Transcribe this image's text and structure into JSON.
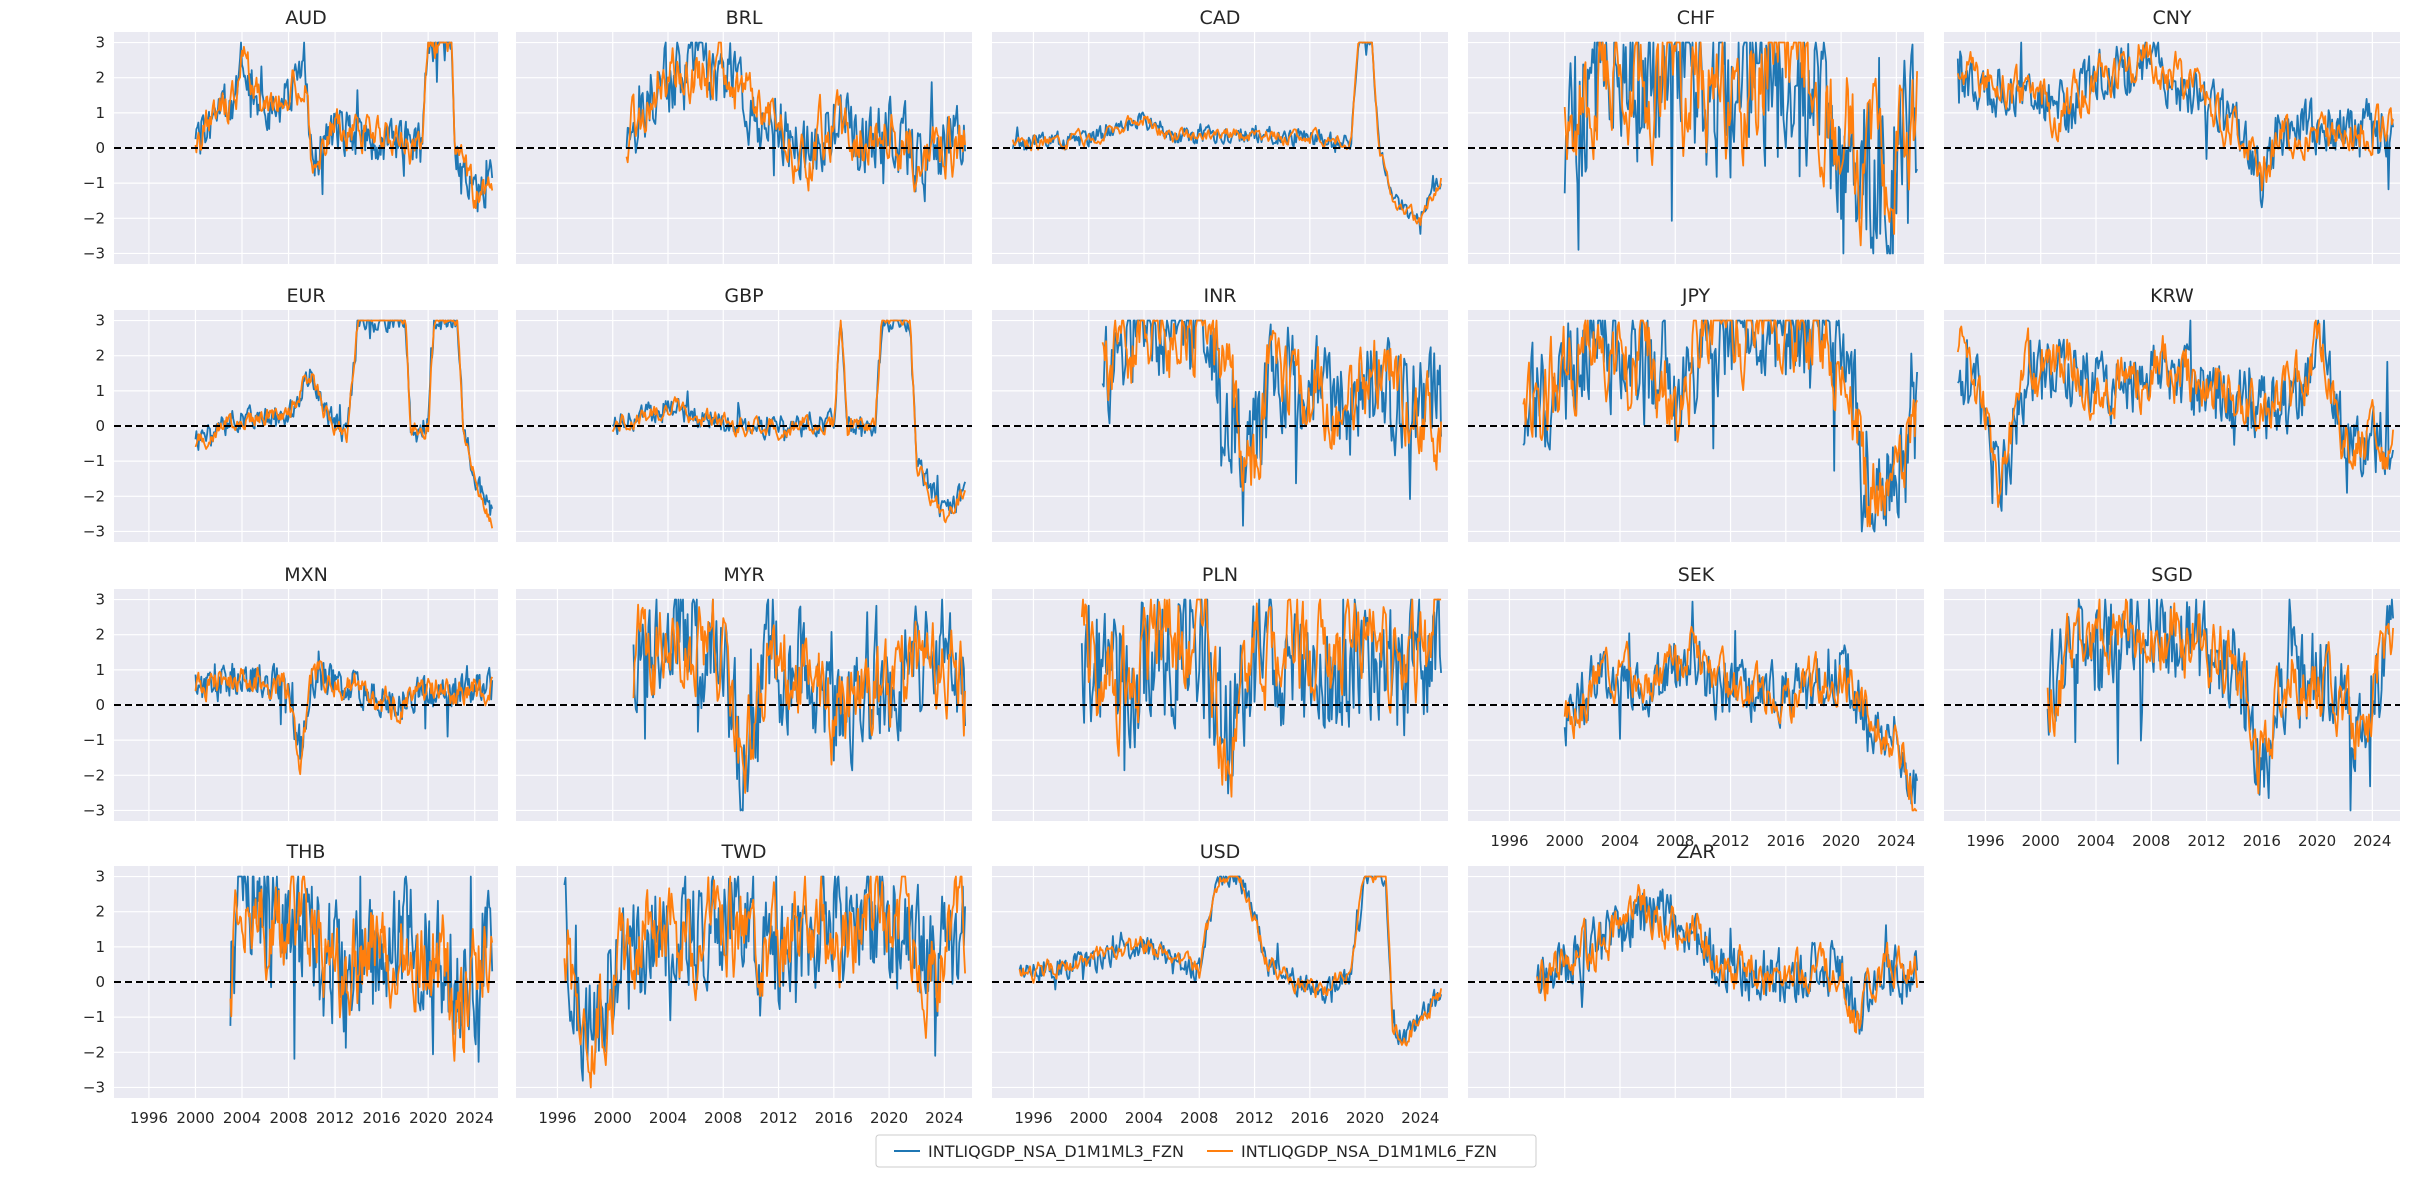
{
  "figure": {
    "legend": [
      {
        "name": "INTLIQGDP_NSA_D1M1ML3_FZN",
        "color": "#1f77b4"
      },
      {
        "name": "INTLIQGDP_NSA_D1M1ML6_FZN",
        "color": "#ff7f0e"
      }
    ],
    "colors": {
      "panel_bg": "#eaeaf2",
      "grid": "#ffffff",
      "zero_line": "#000000",
      "text": "#262626"
    }
  },
  "chart_data": {
    "type": "line",
    "layout": "small-multiples 5 columns x 4 rows",
    "xlim": [
      1993.0,
      2026.0
    ],
    "ylim": [
      -3.3,
      3.3
    ],
    "xticks": [
      1996,
      2000,
      2004,
      2008,
      2012,
      2016,
      2020,
      2024
    ],
    "xtick_labels": [
      "1996",
      "2000",
      "2004",
      "2008",
      "2012",
      "2016",
      "2020",
      "2024"
    ],
    "yticks": [
      -3,
      -2,
      -1,
      0,
      1,
      2,
      3
    ],
    "ytick_labels": [
      "−3",
      "−2",
      "−1",
      "0",
      "1",
      "2",
      "3"
    ],
    "reference_line": {
      "y": 0,
      "style": "dashed",
      "color": "#000000"
    },
    "series_names": [
      "INTLIQGDP_NSA_D1M1ML3_FZN",
      "INTLIQGDP_NSA_D1M1ML6_FZN"
    ],
    "panels": [
      {
        "title": "AUD",
        "start": 2000.0,
        "end": 2025.5,
        "profile": [
          [
            2000,
            0.2
          ],
          [
            2003.5,
            1.5
          ],
          [
            2004,
            2.5
          ],
          [
            2006,
            0.8
          ],
          [
            2009.5,
            2.0
          ],
          [
            2010,
            -0.5
          ],
          [
            2012,
            0.5
          ],
          [
            2016,
            0.2
          ],
          [
            2019.5,
            0
          ],
          [
            2020,
            3
          ],
          [
            2022,
            3
          ],
          [
            2022.3,
            0
          ],
          [
            2024,
            -1.5
          ],
          [
            2025.5,
            -0.8
          ]
        ],
        "volatility": 0.55,
        "seed": 1
      },
      {
        "title": "BRL",
        "start": 2001.0,
        "end": 2025.5,
        "profile": [
          [
            2001,
            0.2
          ],
          [
            2003,
            1.8
          ],
          [
            2005,
            2.0
          ],
          [
            2008,
            2.2
          ],
          [
            2010,
            1.2
          ],
          [
            2012,
            0.5
          ],
          [
            2014,
            -0.3
          ],
          [
            2016,
            0.8
          ],
          [
            2018,
            0.2
          ],
          [
            2020,
            0.5
          ],
          [
            2022,
            -0.2
          ],
          [
            2025.5,
            0.2
          ]
        ],
        "volatility": 0.9,
        "seed": 2
      },
      {
        "title": "CAD",
        "start": 1994.5,
        "end": 2025.5,
        "profile": [
          [
            1994.5,
            0.1
          ],
          [
            2000,
            0.3
          ],
          [
            2004,
            0.8
          ],
          [
            2006,
            0.3
          ],
          [
            2010,
            0.4
          ],
          [
            2015,
            0.3
          ],
          [
            2019,
            0.2
          ],
          [
            2019.5,
            3
          ],
          [
            2020.5,
            3
          ],
          [
            2021,
            0
          ],
          [
            2022,
            -1.5
          ],
          [
            2024,
            -2.0
          ],
          [
            2025.5,
            -0.8
          ]
        ],
        "volatility": 0.22,
        "seed": 3
      },
      {
        "title": "CHF",
        "start": 2000.0,
        "end": 2025.5,
        "profile": [
          [
            2000,
            0.5
          ],
          [
            2003,
            2.5
          ],
          [
            2006,
            1.5
          ],
          [
            2008,
            2.5
          ],
          [
            2012,
            1.0
          ],
          [
            2015,
            2.5
          ],
          [
            2018,
            1.5
          ],
          [
            2020,
            0.5
          ],
          [
            2023,
            -1.0
          ],
          [
            2025.5,
            1.0
          ]
        ],
        "volatility": 2.0,
        "seed": 4
      },
      {
        "title": "CNY",
        "start": 1994.0,
        "end": 2025.5,
        "profile": [
          [
            1994,
            2.0
          ],
          [
            1998,
            1.5
          ],
          [
            2002,
            1.0
          ],
          [
            2004,
            2.0
          ],
          [
            2008,
            2.5
          ],
          [
            2011,
            1.5
          ],
          [
            2013,
            1.0
          ],
          [
            2015,
            0.3
          ],
          [
            2016,
            -1.0
          ],
          [
            2017,
            0.3
          ],
          [
            2020,
            0.5
          ],
          [
            2025.5,
            0.5
          ]
        ],
        "volatility": 0.7,
        "seed": 5
      },
      {
        "title": "EUR",
        "start": 2000.0,
        "end": 2025.5,
        "profile": [
          [
            2000,
            -0.5
          ],
          [
            2002,
            0
          ],
          [
            2004,
            0.2
          ],
          [
            2008,
            0.3
          ],
          [
            2010,
            1.5
          ],
          [
            2011,
            0.5
          ],
          [
            2013,
            -0.3
          ],
          [
            2014,
            3
          ],
          [
            2018,
            3
          ],
          [
            2018.5,
            0
          ],
          [
            2020,
            0
          ],
          [
            2020.5,
            3
          ],
          [
            2022.5,
            3
          ],
          [
            2023,
            0
          ],
          [
            2024,
            -1.5
          ],
          [
            2025.5,
            -2.5
          ]
        ],
        "volatility": 0.28,
        "seed": 6
      },
      {
        "title": "GBP",
        "start": 2000.0,
        "end": 2025.5,
        "profile": [
          [
            2000,
            0
          ],
          [
            2004,
            0.5
          ],
          [
            2008,
            0.1
          ],
          [
            2012,
            0
          ],
          [
            2016,
            0.1
          ],
          [
            2016.5,
            3
          ],
          [
            2017,
            0
          ],
          [
            2019,
            0
          ],
          [
            2019.5,
            3
          ],
          [
            2021.5,
            3
          ],
          [
            2022,
            -1.0
          ],
          [
            2024,
            -2.5
          ],
          [
            2025.5,
            -1.8
          ]
        ],
        "volatility": 0.3,
        "seed": 7
      },
      {
        "title": "INR",
        "start": 2001.0,
        "end": 2025.5,
        "profile": [
          [
            2001,
            1.5
          ],
          [
            2004,
            2.8
          ],
          [
            2008,
            2.5
          ],
          [
            2010,
            0.8
          ],
          [
            2012,
            -1.0
          ],
          [
            2013,
            1.5
          ],
          [
            2016,
            1.0
          ],
          [
            2019,
            0.5
          ],
          [
            2021,
            1.5
          ],
          [
            2023,
            0.5
          ],
          [
            2025.5,
            0.5
          ]
        ],
        "volatility": 1.4,
        "seed": 8
      },
      {
        "title": "JPY",
        "start": 1997.0,
        "end": 2025.5,
        "profile": [
          [
            1997,
            0.2
          ],
          [
            1999,
            1.0
          ],
          [
            2002,
            2.5
          ],
          [
            2005,
            1.5
          ],
          [
            2007,
            1.5
          ],
          [
            2008,
            0.2
          ],
          [
            2010,
            2.5
          ],
          [
            2014,
            3
          ],
          [
            2019,
            2.8
          ],
          [
            2021,
            0.5
          ],
          [
            2022,
            -2.0
          ],
          [
            2024,
            -1.5
          ],
          [
            2025.5,
            0
          ]
        ],
        "volatility": 1.4,
        "seed": 9
      },
      {
        "title": "KRW",
        "start": 1994.0,
        "end": 2025.5,
        "profile": [
          [
            1994,
            2.0
          ],
          [
            1996,
            0.5
          ],
          [
            1997,
            -1.5
          ],
          [
            1999,
            1.5
          ],
          [
            2002,
            1.5
          ],
          [
            2006,
            1.0
          ],
          [
            2009,
            1.5
          ],
          [
            2012,
            1.0
          ],
          [
            2016,
            0.5
          ],
          [
            2019,
            1.0
          ],
          [
            2020,
            2.5
          ],
          [
            2022,
            -0.5
          ],
          [
            2025.5,
            -0.5
          ]
        ],
        "volatility": 0.9,
        "seed": 10
      },
      {
        "title": "MXN",
        "start": 2000.0,
        "end": 2025.5,
        "profile": [
          [
            2000,
            0.5
          ],
          [
            2004,
            0.8
          ],
          [
            2008,
            0.5
          ],
          [
            2009,
            -1.5
          ],
          [
            2010,
            0.8
          ],
          [
            2014,
            0.5
          ],
          [
            2016,
            0
          ],
          [
            2020,
            0.3
          ],
          [
            2025.5,
            0.5
          ]
        ],
        "volatility": 0.45,
        "seed": 11
      },
      {
        "title": "MYR",
        "start": 2001.5,
        "end": 2025.5,
        "profile": [
          [
            2001.5,
            1.0
          ],
          [
            2004,
            2.0
          ],
          [
            2008,
            1.5
          ],
          [
            2009.5,
            -2.0
          ],
          [
            2011,
            1.0
          ],
          [
            2014,
            1.0
          ],
          [
            2016,
            -0.5
          ],
          [
            2018,
            0.5
          ],
          [
            2020,
            0
          ],
          [
            2022,
            1.0
          ],
          [
            2025.5,
            0.5
          ]
        ],
        "volatility": 1.5,
        "seed": 12
      },
      {
        "title": "PLN",
        "start": 1999.5,
        "end": 2025.5,
        "profile": [
          [
            1999.5,
            1.5
          ],
          [
            2002,
            0.5
          ],
          [
            2005,
            1.5
          ],
          [
            2008,
            2.0
          ],
          [
            2010,
            -1.0
          ],
          [
            2012,
            1.0
          ],
          [
            2015,
            1.5
          ],
          [
            2018,
            0.5
          ],
          [
            2020,
            1.5
          ],
          [
            2023,
            1.0
          ],
          [
            2025.5,
            2.0
          ]
        ],
        "volatility": 1.7,
        "seed": 13
      },
      {
        "title": "SEK",
        "start": 2000.0,
        "end": 2025.5,
        "profile": [
          [
            2000,
            -0.5
          ],
          [
            2003,
            1.0
          ],
          [
            2006,
            0.5
          ],
          [
            2009,
            1.5
          ],
          [
            2011,
            0.5
          ],
          [
            2014,
            0.3
          ],
          [
            2017,
            0.3
          ],
          [
            2020,
            1.0
          ],
          [
            2022,
            -0.5
          ],
          [
            2024,
            -1.0
          ],
          [
            2025.5,
            -2.5
          ]
        ],
        "volatility": 0.75,
        "seed": 14
      },
      {
        "title": "SGD",
        "start": 2000.5,
        "end": 2025.5,
        "profile": [
          [
            2000.5,
            0.5
          ],
          [
            2003,
            1.5
          ],
          [
            2006,
            2.0
          ],
          [
            2009,
            2.0
          ],
          [
            2012,
            1.5
          ],
          [
            2014,
            1.0
          ],
          [
            2016,
            -1.5
          ],
          [
            2018,
            1.0
          ],
          [
            2021,
            0.5
          ],
          [
            2023,
            -1.0
          ],
          [
            2025.5,
            2.0
          ]
        ],
        "volatility": 1.2,
        "seed": 15
      },
      {
        "title": "THB",
        "start": 2003.0,
        "end": 2025.5,
        "profile": [
          [
            2003,
            0
          ],
          [
            2004,
            2.5
          ],
          [
            2007,
            1.5
          ],
          [
            2010,
            1.5
          ],
          [
            2013,
            0
          ],
          [
            2016,
            1.0
          ],
          [
            2019,
            1.0
          ],
          [
            2021,
            0.5
          ],
          [
            2023,
            -0.5
          ],
          [
            2025.5,
            1.5
          ]
        ],
        "volatility": 1.5,
        "seed": 16
      },
      {
        "title": "TWD",
        "start": 1996.5,
        "end": 2025.5,
        "profile": [
          [
            1996.5,
            1.5
          ],
          [
            1998,
            -2.0
          ],
          [
            2000,
            0.3
          ],
          [
            2003,
            1.5
          ],
          [
            2006,
            1.5
          ],
          [
            2009,
            1.5
          ],
          [
            2012,
            1.0
          ],
          [
            2015,
            1.5
          ],
          [
            2018,
            1.5
          ],
          [
            2021,
            1.5
          ],
          [
            2023,
            0.5
          ],
          [
            2025.5,
            1.5
          ]
        ],
        "volatility": 1.5,
        "seed": 17
      },
      {
        "title": "USD",
        "start": 1995.0,
        "end": 2025.5,
        "profile": [
          [
            1995,
            0.2
          ],
          [
            1999,
            0.5
          ],
          [
            2004,
            1.0
          ],
          [
            2008,
            0.3
          ],
          [
            2009.5,
            3
          ],
          [
            2011,
            3
          ],
          [
            2013,
            0.5
          ],
          [
            2015,
            0
          ],
          [
            2017,
            -0.3
          ],
          [
            2019,
            0.3
          ],
          [
            2020,
            3
          ],
          [
            2021.5,
            3
          ],
          [
            2022,
            -1.5
          ],
          [
            2023,
            -1.5
          ],
          [
            2025.5,
            -0.3
          ]
        ],
        "volatility": 0.3,
        "seed": 18
      },
      {
        "title": "ZAR",
        "start": 1998.0,
        "end": 2025.5,
        "profile": [
          [
            1998,
            0
          ],
          [
            2000,
            0.5
          ],
          [
            2004,
            1.5
          ],
          [
            2006,
            2.0
          ],
          [
            2009,
            1.5
          ],
          [
            2011,
            0.5
          ],
          [
            2014,
            0.2
          ],
          [
            2017,
            0.2
          ],
          [
            2020,
            0.5
          ],
          [
            2021,
            -1.0
          ],
          [
            2023,
            0.3
          ],
          [
            2025.5,
            0.3
          ]
        ],
        "volatility": 0.7,
        "seed": 19
      }
    ]
  }
}
